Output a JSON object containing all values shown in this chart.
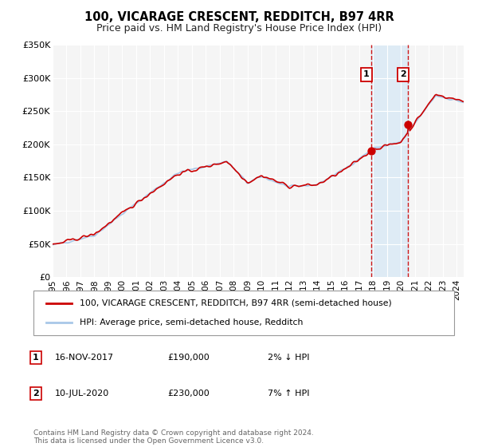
{
  "title": "100, VICARAGE CRESCENT, REDDITCH, B97 4RR",
  "subtitle": "Price paid vs. HM Land Registry's House Price Index (HPI)",
  "ylim": [
    0,
    350000
  ],
  "yticks": [
    0,
    50000,
    100000,
    150000,
    200000,
    250000,
    300000,
    350000
  ],
  "ytick_labels": [
    "£0",
    "£50K",
    "£100K",
    "£150K",
    "£200K",
    "£250K",
    "£300K",
    "£350K"
  ],
  "hpi_color": "#a8c8e8",
  "price_color": "#cc0000",
  "sale1_x": 2017.88,
  "sale1_y": 190000,
  "sale2_x": 2020.52,
  "sale2_y": 230000,
  "marker1_date": "16-NOV-2017",
  "marker1_price": "£190,000",
  "marker1_hpi_diff": "2% ↓ HPI",
  "marker2_date": "10-JUL-2020",
  "marker2_price": "£230,000",
  "marker2_hpi_diff": "7% ↑ HPI",
  "legend_label1": "100, VICARAGE CRESCENT, REDDITCH, B97 4RR (semi-detached house)",
  "legend_label2": "HPI: Average price, semi-detached house, Redditch",
  "footnote": "Contains HM Land Registry data © Crown copyright and database right 2024.\nThis data is licensed under the Open Government Licence v3.0.",
  "bg_color": "#f5f5f5",
  "grid_color": "#ffffff",
  "shade_color": "#daeaf5",
  "xlim_start": 1995,
  "xlim_end": 2024.5,
  "xtick_years": [
    1995,
    1996,
    1997,
    1998,
    1999,
    2000,
    2001,
    2002,
    2003,
    2004,
    2005,
    2006,
    2007,
    2008,
    2009,
    2010,
    2011,
    2012,
    2013,
    2014,
    2015,
    2016,
    2017,
    2018,
    2019,
    2020,
    2021,
    2022,
    2023,
    2024
  ]
}
